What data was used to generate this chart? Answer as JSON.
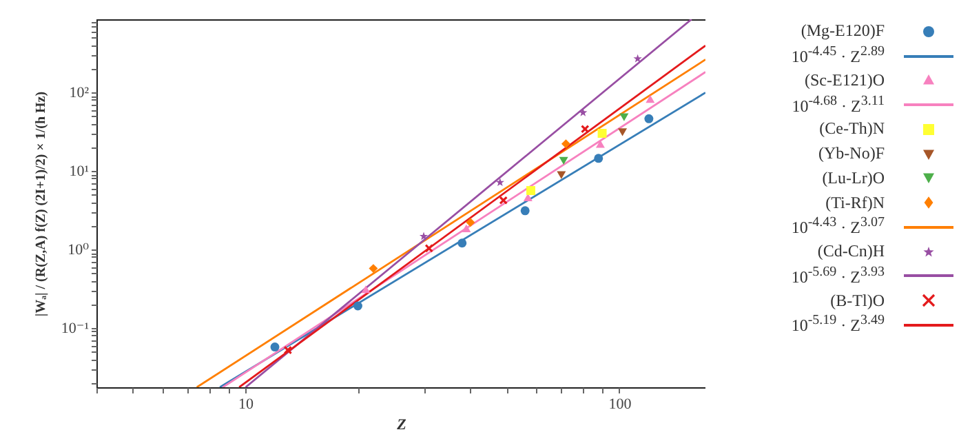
{
  "chart_data": {
    "type": "scatter",
    "xlabel": "Z",
    "ylabel": "|Wₐ| / (R(Z,A) f(Z) (2I+1)/2) × 1/(h Hz)",
    "log": "xy",
    "grid": false,
    "legend": "right",
    "xlim": [
      4,
      170
    ],
    "ylim": [
      0.0175,
      850
    ],
    "xticks": [
      {
        "value": 4,
        "label": null
      },
      {
        "value": 5,
        "label": null
      },
      {
        "value": 6,
        "label": null
      },
      {
        "value": 7,
        "label": null
      },
      {
        "value": 8,
        "label": null
      },
      {
        "value": 9,
        "label": null
      },
      10,
      {
        "value": 20,
        "label": null
      },
      {
        "value": 30,
        "label": null
      },
      {
        "value": 40,
        "label": null
      },
      {
        "value": 50,
        "label": null
      },
      {
        "value": 60,
        "label": null
      },
      {
        "value": 70,
        "label": null
      },
      {
        "value": 80,
        "label": null
      },
      {
        "value": 90,
        "label": null
      },
      100
    ],
    "yticks": [
      {
        "value": 0.02,
        "label": null
      },
      {
        "value": 0.03,
        "label": null
      },
      {
        "value": 0.04,
        "label": null
      },
      {
        "value": 0.05,
        "label": null
      },
      {
        "value": 0.06,
        "label": null
      },
      {
        "value": 0.07,
        "label": null
      },
      {
        "value": 0.08,
        "label": null
      },
      {
        "value": 0.09,
        "label": null
      },
      {
        "value": 0.1,
        "label": "10⁻¹"
      },
      {
        "value": 0.2,
        "label": null
      },
      {
        "value": 0.3,
        "label": null
      },
      {
        "value": 0.4,
        "label": null
      },
      {
        "value": 0.5,
        "label": null
      },
      {
        "value": 0.6,
        "label": null
      },
      {
        "value": 0.7,
        "label": null
      },
      {
        "value": 0.8,
        "label": null
      },
      {
        "value": 0.9,
        "label": null
      },
      {
        "value": 1,
        "label": "10⁰"
      },
      {
        "value": 2,
        "label": null
      },
      {
        "value": 3,
        "label": null
      },
      {
        "value": 4,
        "label": null
      },
      {
        "value": 5,
        "label": null
      },
      {
        "value": 6,
        "label": null
      },
      {
        "value": 7,
        "label": null
      },
      {
        "value": 8,
        "label": null
      },
      {
        "value": 9,
        "label": null
      },
      {
        "value": 10,
        "label": "10¹"
      },
      {
        "value": 20,
        "label": null
      },
      {
        "value": 30,
        "label": null
      },
      {
        "value": 40,
        "label": null
      },
      {
        "value": 50,
        "label": null
      },
      {
        "value": 60,
        "label": null
      },
      {
        "value": 70,
        "label": null
      },
      {
        "value": 80,
        "label": null
      },
      {
        "value": 90,
        "label": null
      },
      {
        "value": 100,
        "label": "10²"
      },
      {
        "value": 200,
        "label": null
      },
      {
        "value": 300,
        "label": null
      },
      {
        "value": 400,
        "label": null
      },
      {
        "value": 500,
        "label": null
      },
      {
        "value": 600,
        "label": null
      },
      {
        "value": 700,
        "label": null
      },
      {
        "value": 800,
        "label": null
      }
    ],
    "series": [
      {
        "name": "(Mg-E120)F",
        "type": "scatter",
        "marker": "circle",
        "color": "#377eb8",
        "x": [
          12,
          20,
          38,
          56,
          88,
          120
        ],
        "values": [
          0.057,
          0.19,
          1.2,
          3.1,
          14.4,
          46
        ]
      },
      {
        "name": "10$^{-4.45}$ · Z$^{2.89}$",
        "type": "line",
        "color": "#377eb8",
        "x": [
          8.55,
          170
        ],
        "values": [
          0.0175,
          99
        ]
      },
      {
        "name": "(Sc-E121)O",
        "type": "scatter",
        "marker": "triangle",
        "color": "#f781bf",
        "x": [
          21,
          39,
          57,
          89,
          121
        ],
        "values": [
          0.31,
          1.85,
          4.6,
          22,
          82
        ]
      },
      {
        "name": "10$^{-4.68}$ · Z$^{3.11}$",
        "type": "line",
        "color": "#f781bf",
        "x": [
          8.71,
          170
        ],
        "values": [
          0.0175,
          181
        ]
      },
      {
        "name": "(Ce-Th)N",
        "type": "scatter",
        "marker": "square",
        "color": "#ffff33",
        "x": [
          58,
          90
        ],
        "values": [
          5.6,
          30
        ]
      },
      {
        "name": "(Yb-No)F",
        "type": "scatter",
        "marker": "triangle-down",
        "color": "#a65628",
        "x": [
          70,
          102
        ],
        "values": [
          8.8,
          31
        ]
      },
      {
        "name": "(Lu-Lr)O",
        "type": "scatter",
        "marker": "triangle-down",
        "color": "#4daf4a",
        "x": [
          71,
          103
        ],
        "values": [
          13.4,
          48
        ]
      },
      {
        "name": "(Ti-Rf)N",
        "type": "scatter",
        "marker": "diamond",
        "color": "#ff7f00",
        "x": [
          22,
          40,
          72
        ],
        "values": [
          0.57,
          2.2,
          22
        ]
      },
      {
        "name": "10$^{-4.43}$ · Z$^{3.07}$",
        "type": "line",
        "color": "#ff7f00",
        "x": [
          7.42,
          170
        ],
        "values": [
          0.0175,
          261
        ]
      },
      {
        "name": "(Cd-Cn)H",
        "type": "scatter",
        "marker": "star",
        "color": "#984ea3",
        "x": [
          30,
          48,
          80,
          112
        ],
        "values": [
          1.46,
          7.1,
          55,
          267
        ]
      },
      {
        "name": "10$^{-5.69}$ · Z$^{3.93}$",
        "type": "line",
        "color": "#984ea3",
        "x": [
          10.02,
          156
        ],
        "values": [
          0.0175,
          850
        ]
      },
      {
        "name": "(B-Tl)O",
        "type": "scatter",
        "marker": "cross",
        "color": "#e41a1c",
        "x": [
          13,
          31,
          49,
          81
        ],
        "values": [
          0.052,
          1.03,
          4.2,
          34
        ]
      },
      {
        "name": "10$^{-5.19}$ · Z$^{3.49}$",
        "type": "line",
        "color": "#e41a1c",
        "x": [
          9.63,
          170
        ],
        "values": [
          0.0175,
          393
        ]
      }
    ]
  }
}
